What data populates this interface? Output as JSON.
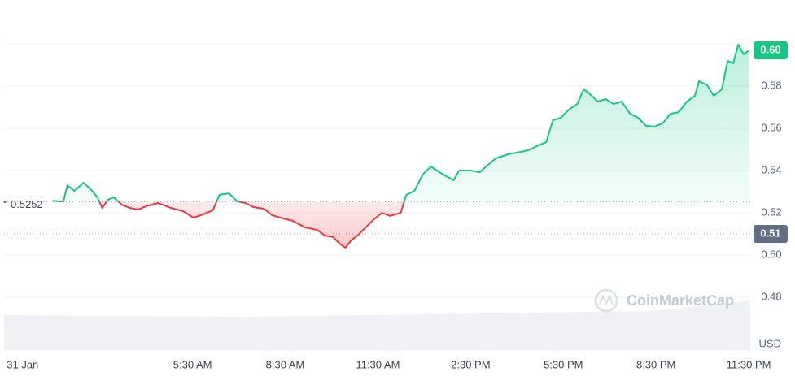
{
  "chart_data": {
    "type": "line",
    "currency": "USD",
    "watermark": "CoinMarketCap",
    "baseline": 0.5252,
    "low": {
      "value": 0.51,
      "label": "0.51"
    },
    "current": {
      "value": 0.6,
      "label": "0.60"
    },
    "up_color": "#16c784",
    "down_color": "#ea3943",
    "xlim": [
      -0.6,
      23.55
    ],
    "ylim": [
      0.455,
      0.62
    ],
    "xticks": [
      {
        "value": 0,
        "label": "31 Jan"
      },
      {
        "value": 5.5,
        "label": "5:30 AM"
      },
      {
        "value": 8.5,
        "label": "8:30 AM"
      },
      {
        "value": 11.5,
        "label": "11:30 AM"
      },
      {
        "value": 14.5,
        "label": "2:30 PM"
      },
      {
        "value": 17.5,
        "label": "5:30 PM"
      },
      {
        "value": 20.5,
        "label": "8:30 PM"
      },
      {
        "value": 23.5,
        "label": "11:30 PM"
      }
    ],
    "yticks": [
      0.48,
      {
        "value": 0.5,
        "label": "0.50"
      },
      0.52,
      0.54,
      0.56,
      0.58
    ],
    "grid": true,
    "x": [
      0.97,
      1.32,
      1.45,
      1.68,
      1.97,
      2.21,
      2.42,
      2.58,
      2.76,
      2.95,
      3.21,
      3.47,
      3.74,
      4,
      4.39,
      4.79,
      5.18,
      5.53,
      5.84,
      6.16,
      6.37,
      6.68,
      6.95,
      7.21,
      7.47,
      7.82,
      8.08,
      8.34,
      8.74,
      9.13,
      9.53,
      9.79,
      10.05,
      10.26,
      10.45,
      10.63,
      10.84,
      11.11,
      11.37,
      11.63,
      11.89,
      12.24,
      12.42,
      12.68,
      12.95,
      13.21,
      13.61,
      13.95,
      14.13,
      14.53,
      14.79,
      15,
      15.32,
      15.71,
      16.11,
      16.37,
      16.63,
      16.95,
      17.16,
      17.42,
      17.68,
      17.95,
      18.16,
      18.34,
      18.61,
      18.87,
      19.13,
      19.39,
      19.66,
      19.92,
      20.18,
      20.45,
      20.71,
      20.97,
      21.24,
      21.5,
      21.76,
      21.89,
      22.16,
      22.37,
      22.63,
      22.82,
      23,
      23.16,
      23.34,
      23.5
    ],
    "values": [
      0.5257,
      0.5253,
      0.533,
      0.5304,
      0.5342,
      0.5311,
      0.5273,
      0.5223,
      0.5262,
      0.5273,
      0.5238,
      0.5223,
      0.5215,
      0.5231,
      0.5246,
      0.5223,
      0.5208,
      0.5177,
      0.5192,
      0.5212,
      0.5285,
      0.5292,
      0.5254,
      0.5246,
      0.5227,
      0.5219,
      0.5188,
      0.5177,
      0.5162,
      0.5131,
      0.5119,
      0.5092,
      0.5085,
      0.5054,
      0.5035,
      0.5069,
      0.5092,
      0.5131,
      0.5169,
      0.52,
      0.5185,
      0.52,
      0.5285,
      0.5304,
      0.5381,
      0.5419,
      0.5381,
      0.5354,
      0.54,
      0.54,
      0.5392,
      0.5419,
      0.5458,
      0.5477,
      0.5488,
      0.5496,
      0.5515,
      0.5535,
      0.5638,
      0.565,
      0.5688,
      0.5715,
      0.5785,
      0.5765,
      0.5727,
      0.5738,
      0.5715,
      0.5727,
      0.5669,
      0.565,
      0.5612,
      0.5608,
      0.5623,
      0.5669,
      0.5677,
      0.5727,
      0.5754,
      0.5823,
      0.5804,
      0.5754,
      0.5785,
      0.5919,
      0.5908,
      0.5996,
      0.595,
      0.5969
    ]
  }
}
